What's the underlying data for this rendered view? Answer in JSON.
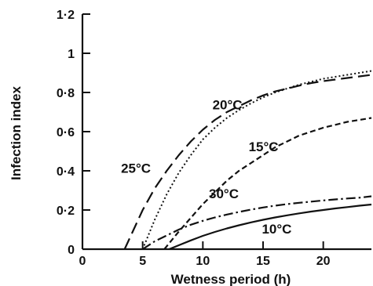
{
  "chart_data": {
    "type": "line",
    "title": "",
    "xlabel": "Wetness period (h)",
    "ylabel": "Infection index",
    "xlim": [
      0,
      24
    ],
    "ylim": [
      0,
      1.2
    ],
    "xticks": [
      0,
      5,
      10,
      15,
      20
    ],
    "xtick_labels": [
      "0",
      "5",
      "10",
      "15",
      "20"
    ],
    "yticks": [
      0,
      0.2,
      0.4,
      0.6,
      0.8,
      1.0,
      1.2
    ],
    "ytick_labels": [
      "0",
      "0·2",
      "0·4",
      "0·6",
      "0·8",
      "1",
      "1·2"
    ],
    "grid": false,
    "legend": "inline labels",
    "series": [
      {
        "name": "25°C",
        "style": "long-dash",
        "color": "#111111",
        "x": [
          3.5,
          5,
          6,
          7,
          8,
          9,
          10,
          11,
          12,
          13,
          14,
          15,
          16,
          17,
          18,
          19,
          20,
          21,
          22,
          23,
          24
        ],
        "y": [
          0,
          0.2,
          0.31,
          0.4,
          0.48,
          0.55,
          0.61,
          0.66,
          0.7,
          0.73,
          0.76,
          0.785,
          0.805,
          0.82,
          0.835,
          0.848,
          0.858,
          0.866,
          0.874,
          0.882,
          0.89
        ]
      },
      {
        "name": "20°C",
        "style": "dotted",
        "color": "#111111",
        "x": [
          5,
          6,
          7,
          8,
          9,
          10,
          11,
          12,
          13,
          14,
          15,
          16,
          17,
          18,
          19,
          20,
          21,
          22,
          23,
          24
        ],
        "y": [
          0,
          0.15,
          0.28,
          0.39,
          0.48,
          0.56,
          0.62,
          0.67,
          0.71,
          0.745,
          0.775,
          0.8,
          0.82,
          0.84,
          0.855,
          0.87,
          0.88,
          0.89,
          0.9,
          0.91
        ]
      },
      {
        "name": "15°C",
        "style": "short-dash",
        "color": "#111111",
        "x": [
          6.8,
          8,
          9,
          10,
          11,
          12,
          13,
          14,
          15,
          16,
          17,
          18,
          19,
          20,
          21,
          22,
          23,
          24
        ],
        "y": [
          0,
          0.09,
          0.16,
          0.23,
          0.29,
          0.35,
          0.4,
          0.44,
          0.48,
          0.52,
          0.55,
          0.58,
          0.6,
          0.62,
          0.635,
          0.65,
          0.66,
          0.67
        ]
      },
      {
        "name": "30°C",
        "style": "dash-dot",
        "color": "#111111",
        "x": [
          5,
          6,
          7,
          8,
          9,
          10,
          11,
          12,
          13,
          14,
          15,
          16,
          17,
          18,
          19,
          20,
          21,
          22,
          23,
          24
        ],
        "y": [
          0,
          0.04,
          0.07,
          0.1,
          0.125,
          0.145,
          0.162,
          0.177,
          0.19,
          0.202,
          0.213,
          0.222,
          0.23,
          0.237,
          0.243,
          0.249,
          0.254,
          0.259,
          0.263,
          0.27
        ]
      },
      {
        "name": "10°C",
        "style": "solid",
        "color": "#111111",
        "x": [
          7.2,
          8,
          9,
          10,
          11,
          12,
          13,
          14,
          15,
          16,
          17,
          18,
          19,
          20,
          21,
          22,
          23,
          24
        ],
        "y": [
          0,
          0.02,
          0.045,
          0.068,
          0.088,
          0.106,
          0.122,
          0.137,
          0.15,
          0.162,
          0.173,
          0.183,
          0.192,
          0.2,
          0.208,
          0.215,
          0.222,
          0.228
        ]
      }
    ],
    "annotations": [
      {
        "text": "25°C",
        "series": "25°C",
        "x": 3.2,
        "y": 0.39
      },
      {
        "text": "20°C",
        "series": "20°C",
        "x": 10.8,
        "y": 0.715
      },
      {
        "text": "15°C",
        "series": "15°C",
        "x": 13.8,
        "y": 0.5
      },
      {
        "text": "30°C",
        "series": "30°C",
        "x": 10.5,
        "y": 0.26
      },
      {
        "text": "10°C",
        "series": "10°C",
        "x": 14.9,
        "y": 0.08
      }
    ]
  }
}
